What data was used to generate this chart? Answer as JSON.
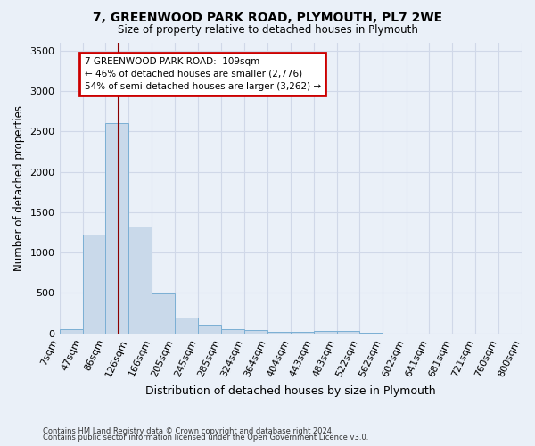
{
  "title": "7, GREENWOOD PARK ROAD, PLYMOUTH, PL7 2WE",
  "subtitle": "Size of property relative to detached houses in Plymouth",
  "xlabel": "Distribution of detached houses by size in Plymouth",
  "ylabel": "Number of detached properties",
  "footer1": "Contains HM Land Registry data © Crown copyright and database right 2024.",
  "footer2": "Contains public sector information licensed under the Open Government Licence v3.0.",
  "bin_labels": [
    "7sqm",
    "47sqm",
    "86sqm",
    "126sqm",
    "166sqm",
    "205sqm",
    "245sqm",
    "285sqm",
    "324sqm",
    "364sqm",
    "404sqm",
    "443sqm",
    "483sqm",
    "522sqm",
    "562sqm",
    "602sqm",
    "641sqm",
    "681sqm",
    "721sqm",
    "760sqm",
    "800sqm"
  ],
  "bin_edges": [
    7,
    47,
    86,
    126,
    166,
    205,
    245,
    285,
    324,
    364,
    404,
    443,
    483,
    522,
    562,
    602,
    641,
    681,
    721,
    760,
    800
  ],
  "bar_heights": [
    55,
    1220,
    2600,
    1320,
    490,
    200,
    105,
    50,
    38,
    25,
    25,
    28,
    28,
    5,
    3,
    2,
    1,
    1,
    1,
    1
  ],
  "bar_color": "#c9d9ea",
  "bar_edge_color": "#7bafd4",
  "grid_color": "#d0d8e8",
  "vline_x": 109,
  "vline_color": "#8b0000",
  "annotation_text": "7 GREENWOOD PARK ROAD:  109sqm\n← 46% of detached houses are smaller (2,776)\n54% of semi-detached houses are larger (3,262) →",
  "annotation_box_color": "#cc0000",
  "ylim": [
    0,
    3600
  ],
  "yticks": [
    0,
    500,
    1000,
    1500,
    2000,
    2500,
    3000,
    3500
  ],
  "bg_color": "#eaf0f8",
  "axes_bg_color": "#eaf0f8"
}
